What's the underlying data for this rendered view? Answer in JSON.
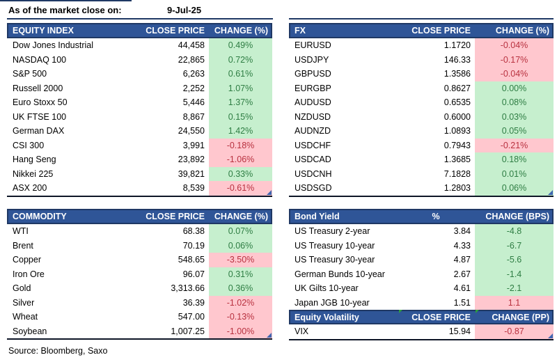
{
  "meta": {
    "as_of_label": "As of the market close on:",
    "as_of_date": "9-Jul-25",
    "source": "Source: Bloomberg, Saxo"
  },
  "colors": {
    "header_bg": "#2F5597",
    "header_border": "#1F3864",
    "positive_bg": "#C6EFCE",
    "positive_text": "#2E7D43",
    "negative_bg": "#FFC7CE",
    "negative_text": "#B8313F",
    "marker_blue": "#3F66B0",
    "marker_green": "#2E9E3E"
  },
  "tables": {
    "equity": {
      "title": "EQUITY INDEX",
      "col2": "CLOSE PRICE",
      "col3": "CHANGE (%)",
      "rows": [
        {
          "name": "Dow Jones Industrial",
          "close": "44,458",
          "change": "0.49%",
          "color": "green"
        },
        {
          "name": "NASDAQ 100",
          "close": "22,865",
          "change": "0.72%",
          "color": "green"
        },
        {
          "name": "S&P 500",
          "close": "6,263",
          "change": "0.61%",
          "color": "green"
        },
        {
          "name": "Russell 2000",
          "close": "2,252",
          "change": "1.07%",
          "color": "green"
        },
        {
          "name": "Euro Stoxx 50",
          "close": "5,446",
          "change": "1.37%",
          "color": "green"
        },
        {
          "name": "UK FTSE 100",
          "close": "8,867",
          "change": "0.15%",
          "color": "green"
        },
        {
          "name": "German DAX",
          "close": "24,550",
          "change": "1.42%",
          "color": "green"
        },
        {
          "name": "CSI 300",
          "close": "3,991",
          "change": "-0.18%",
          "color": "red"
        },
        {
          "name": "Hang Seng",
          "close": "23,892",
          "change": "-1.06%",
          "color": "red"
        },
        {
          "name": "Nikkei 225",
          "close": "39,821",
          "change": "0.33%",
          "color": "green"
        },
        {
          "name": "ASX 200",
          "close": "8,539",
          "change": "-0.61%",
          "color": "red"
        }
      ]
    },
    "fx": {
      "title": "FX",
      "col2": "CLOSE PRICE",
      "col3": "CHANGE (%)",
      "rows": [
        {
          "name": "EURUSD",
          "close": "1.1720",
          "change": "-0.04%",
          "color": "red"
        },
        {
          "name": "USDJPY",
          "close": "146.33",
          "change": "-0.17%",
          "color": "red"
        },
        {
          "name": "GBPUSD",
          "close": "1.3586",
          "change": "-0.04%",
          "color": "red"
        },
        {
          "name": "EURGBP",
          "close": "0.8627",
          "change": "0.00%",
          "color": "green"
        },
        {
          "name": "AUDUSD",
          "close": "0.6535",
          "change": "0.08%",
          "color": "green"
        },
        {
          "name": "NZDUSD",
          "close": "0.6000",
          "change": "0.03%",
          "color": "green"
        },
        {
          "name": "AUDNZD",
          "close": "1.0893",
          "change": "0.05%",
          "color": "green"
        },
        {
          "name": "USDCHF",
          "close": "0.7943",
          "change": "-0.21%",
          "color": "red"
        },
        {
          "name": "USDCAD",
          "close": "1.3685",
          "change": "0.18%",
          "color": "green"
        },
        {
          "name": "USDCNH",
          "close": "7.1828",
          "change": "0.01%",
          "color": "green"
        },
        {
          "name": "USDSGD",
          "close": "1.2803",
          "change": "0.06%",
          "color": "green"
        }
      ]
    },
    "commodity": {
      "title": "COMMODITY",
      "col2": "CLOSE PRICE",
      "col3": "CHANGE (%)",
      "rows": [
        {
          "name": "WTI",
          "close": "68.38",
          "change": "0.07%",
          "color": "green"
        },
        {
          "name": "Brent",
          "close": "70.19",
          "change": "0.06%",
          "color": "green"
        },
        {
          "name": "Copper",
          "close": "548.65",
          "change": "-3.50%",
          "color": "red"
        },
        {
          "name": "Iron Ore",
          "close": "96.07",
          "change": "0.31%",
          "color": "green"
        },
        {
          "name": "Gold",
          "close": "3,313.66",
          "change": "0.36%",
          "color": "green"
        },
        {
          "name": "Silver",
          "close": "36.39",
          "change": "-1.02%",
          "color": "red"
        },
        {
          "name": "Wheat",
          "close": "547.00",
          "change": "-0.13%",
          "color": "red"
        },
        {
          "name": "Soybean",
          "close": "1,007.25",
          "change": "-1.00%",
          "color": "red"
        }
      ]
    },
    "bond": {
      "title": "Bond Yield",
      "col2": "%",
      "col3": "CHANGE (BPS)",
      "rows": [
        {
          "name": "US Treasury 2-year",
          "close": "3.84",
          "change": "-4.8",
          "color": "green"
        },
        {
          "name": "US Treasury 10-year",
          "close": "4.33",
          "change": "-6.7",
          "color": "green"
        },
        {
          "name": "US Treasury 30-year",
          "close": "4.87",
          "change": "-5.6",
          "color": "green"
        },
        {
          "name": "German Bunds 10-year",
          "close": "2.67",
          "change": "-1.4",
          "color": "green"
        },
        {
          "name": "UK Gilts 10-year",
          "close": "4.61",
          "change": "-2.1",
          "color": "green"
        },
        {
          "name": "Japan JGB 10-year",
          "close": "1.51",
          "change": "1.1",
          "color": "red"
        }
      ]
    },
    "volatility": {
      "title": "Equity Volatility",
      "col2": "CLOSE PRICE",
      "col3": "CHANGE (PP)",
      "rows": [
        {
          "name": "VIX",
          "close": "15.94",
          "change": "-0.87",
          "color": "red"
        }
      ]
    }
  }
}
